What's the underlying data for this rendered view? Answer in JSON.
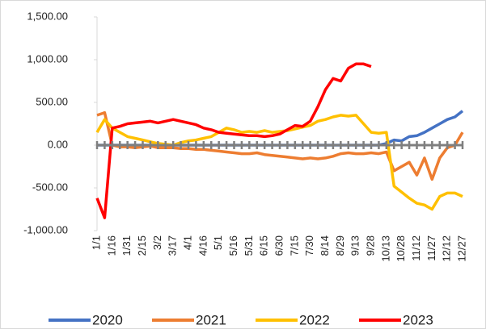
{
  "chart_data": {
    "type": "line",
    "categories": [
      "1/1",
      null,
      "1/16",
      null,
      "1/31",
      null,
      "2/15",
      null,
      "3/2",
      null,
      "3/17",
      null,
      "4/1",
      null,
      "4/16",
      null,
      "5/1",
      null,
      "5/16",
      null,
      "5/31",
      null,
      "6/15",
      null,
      "6/30",
      null,
      "7/15",
      null,
      "7/30",
      null,
      "8/14",
      null,
      "8/29",
      null,
      "9/13",
      null,
      "9/28",
      null,
      "10/13",
      null,
      "10/28",
      null,
      "11/12",
      null,
      "11/27",
      null,
      "12/12",
      null,
      "12/27"
    ],
    "series": [
      {
        "name": "2020",
        "color": "#4472c4",
        "values": [
          0,
          0,
          0,
          0,
          0,
          0,
          0,
          0,
          0,
          0,
          0,
          0,
          0,
          0,
          0,
          0,
          0,
          0,
          0,
          0,
          0,
          0,
          0,
          0,
          0,
          0,
          0,
          0,
          0,
          0,
          0,
          0,
          0,
          0,
          0,
          0,
          0,
          0,
          20,
          60,
          50,
          100,
          110,
          150,
          200,
          250,
          300,
          330,
          400
        ]
      },
      {
        "name": "2021",
        "color": "#ed7d31",
        "values": [
          350,
          380,
          0,
          -20,
          -20,
          -30,
          -20,
          -10,
          -30,
          -30,
          -30,
          -40,
          -40,
          -50,
          -50,
          -60,
          -70,
          -80,
          -90,
          -100,
          -100,
          -90,
          -110,
          -120,
          -130,
          -140,
          -150,
          -160,
          -150,
          -160,
          -150,
          -130,
          -100,
          -90,
          -100,
          -100,
          -90,
          -100,
          -80,
          -300,
          -250,
          -200,
          -350,
          -150,
          -400,
          -150,
          -30,
          0,
          150
        ]
      },
      {
        "name": "2022",
        "color": "#ffc000",
        "values": [
          150,
          300,
          200,
          150,
          100,
          80,
          60,
          40,
          20,
          10,
          0,
          30,
          50,
          60,
          80,
          100,
          150,
          200,
          180,
          150,
          160,
          150,
          170,
          150,
          160,
          170,
          190,
          210,
          230,
          280,
          300,
          330,
          350,
          340,
          350,
          250,
          150,
          140,
          150,
          -480,
          -550,
          -620,
          -680,
          -700,
          -750,
          -600,
          -560,
          -560,
          -600
        ]
      },
      {
        "name": "2023",
        "color": "#ff0000",
        "values": [
          -620,
          -850,
          200,
          220,
          250,
          260,
          270,
          280,
          260,
          280,
          300,
          280,
          260,
          240,
          200,
          180,
          150,
          140,
          130,
          120,
          110,
          110,
          100,
          110,
          130,
          180,
          230,
          220,
          280,
          450,
          650,
          780,
          750,
          900,
          950,
          950,
          920,
          null,
          null,
          null,
          null,
          null,
          null,
          null,
          null,
          null,
          null,
          null,
          null
        ]
      }
    ],
    "ylim": [
      -1000,
      1500
    ],
    "yticks": [
      {
        "value": -1000,
        "label": "-1,000.00"
      },
      {
        "value": -500,
        "label": "-500.00"
      },
      {
        "value": 0,
        "label": "0.00"
      },
      {
        "value": 500,
        "label": "500.00"
      },
      {
        "value": 1000,
        "label": "1,000.00"
      },
      {
        "value": 1500,
        "label": "1,500.00"
      }
    ],
    "grid": false,
    "legend": "bottom"
  }
}
